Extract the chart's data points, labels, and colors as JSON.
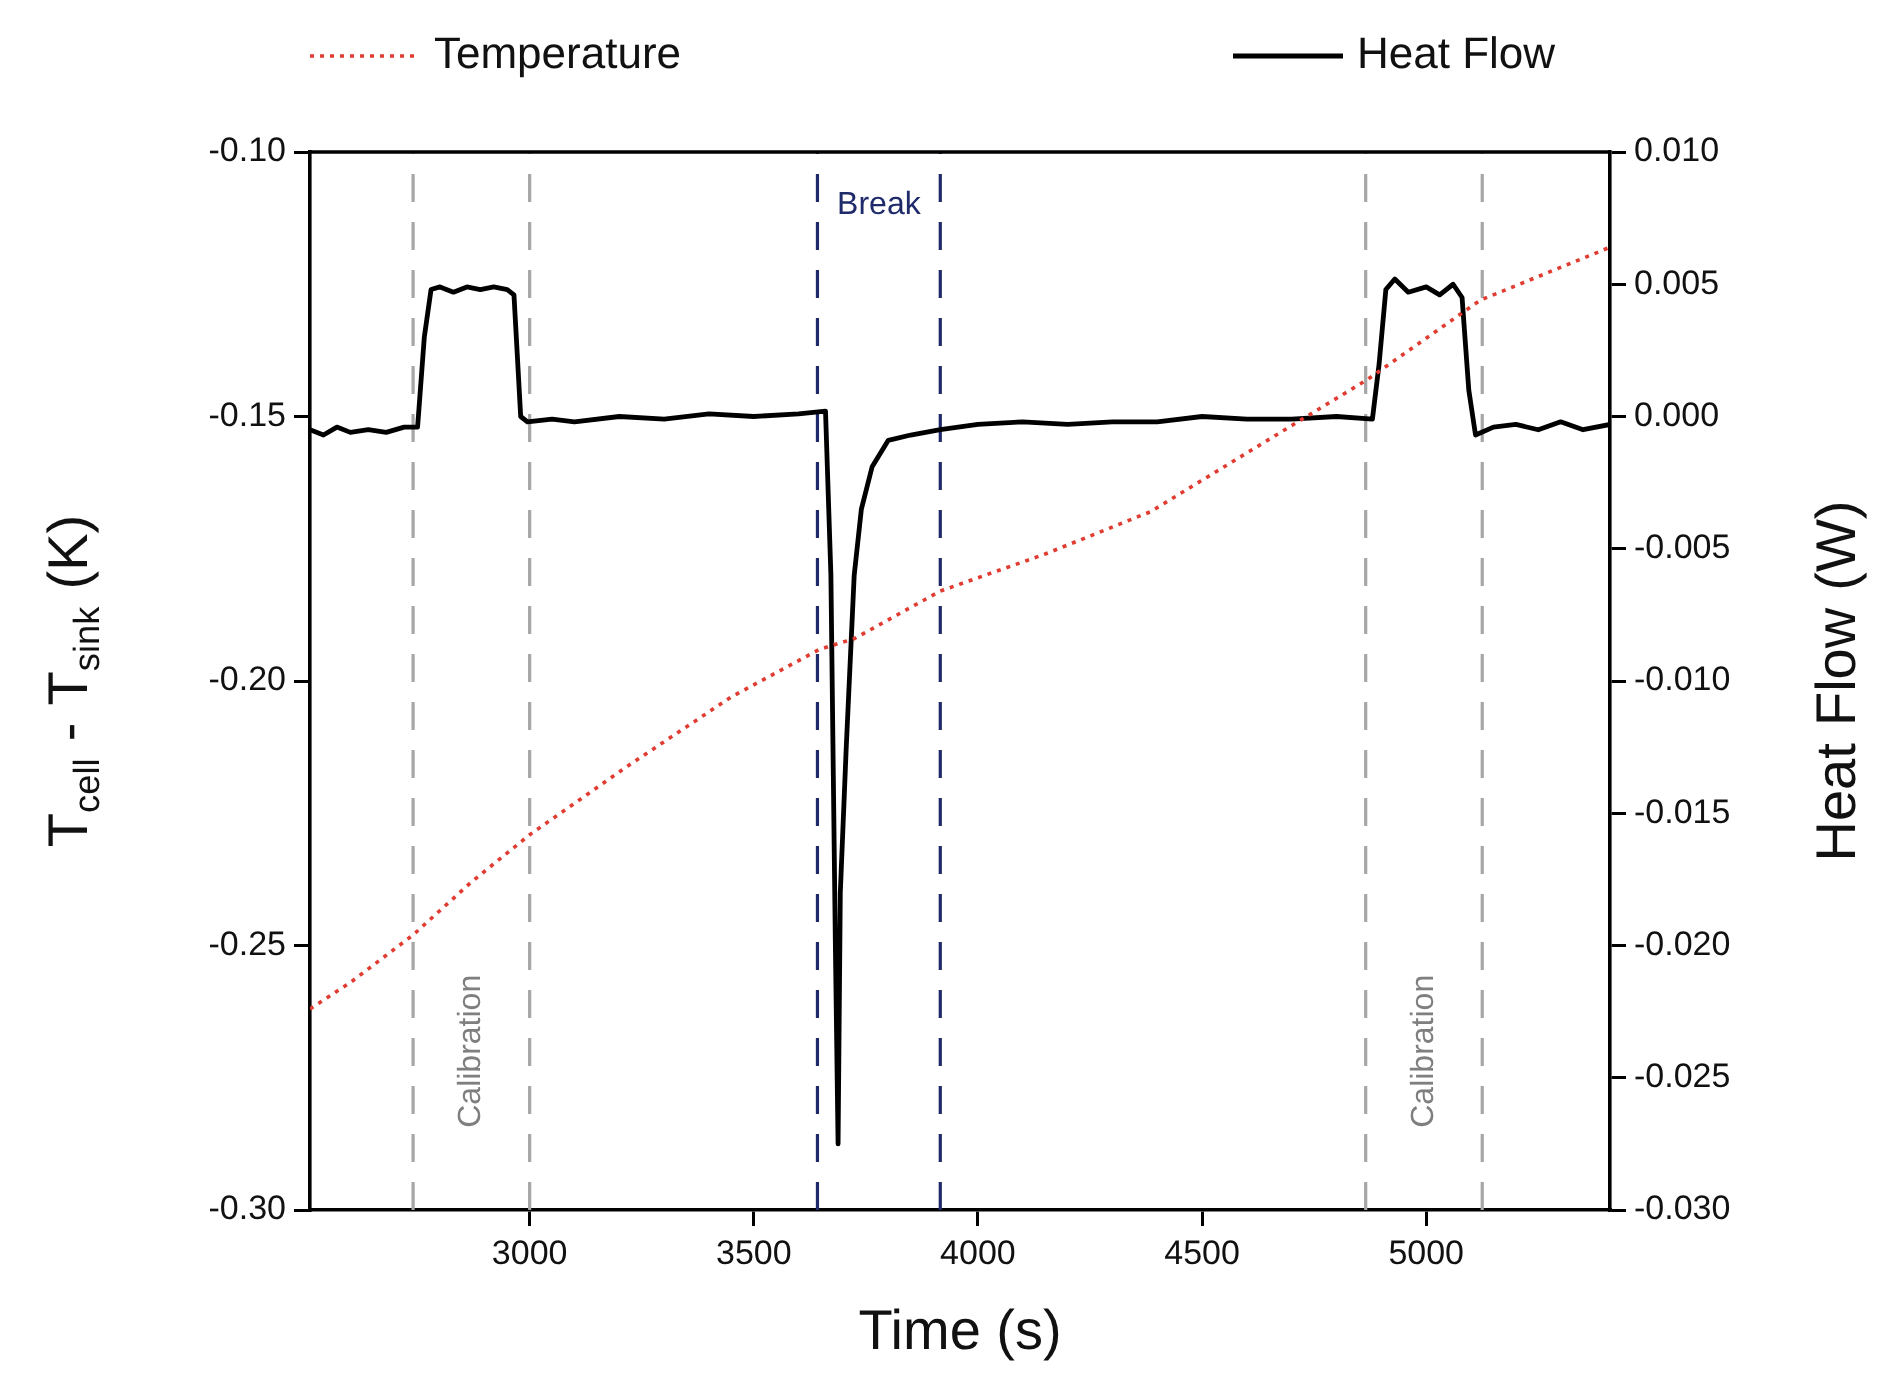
{
  "chart_data": {
    "type": "line",
    "xlabel": "Time (s)",
    "ylabel": "T$_{cell}$ - T$_{sink}$ (K)",
    "y2label": "Heat Flow (W)",
    "xlim": [
      2510,
      5410
    ],
    "xticks": [
      3000,
      3500,
      4000,
      4500,
      5000
    ],
    "ylim": [
      -0.3,
      -0.1
    ],
    "yticks": [
      {
        "value": -0.3,
        "label": "-0.30"
      },
      {
        "value": -0.25,
        "label": "-0.25"
      },
      {
        "value": -0.2,
        "label": "-0.20"
      },
      {
        "value": -0.15,
        "label": "-0.15"
      },
      {
        "value": -0.1,
        "label": "-0.10"
      }
    ],
    "y2lim": [
      -0.03,
      0.01
    ],
    "y2ticks": [
      {
        "value": -0.03,
        "label": "-0.030"
      },
      {
        "value": -0.025,
        "label": "-0.025"
      },
      {
        "value": -0.02,
        "label": "-0.020"
      },
      {
        "value": -0.015,
        "label": "-0.015"
      },
      {
        "value": -0.01,
        "label": "-0.010"
      },
      {
        "value": -0.005,
        "label": "-0.005"
      },
      {
        "value": 0,
        "label": "0.000"
      },
      {
        "value": 0.005,
        "label": "0.005"
      },
      {
        "value": 0.01,
        "label": "0.010"
      }
    ],
    "series": [
      {
        "name": "Temperature",
        "color": "#e03c31",
        "line_style": "dotted",
        "x": [
          2510,
          2600,
          2740,
          2870,
          3001,
          3220,
          3450,
          3647,
          3724,
          3916,
          4150,
          4385,
          4675,
          4869,
          5121,
          5410
        ],
        "values": [
          -0.262,
          -0.257,
          -0.248,
          -0.238,
          -0.229,
          -0.216,
          -0.203,
          -0.194,
          -0.192,
          -0.183,
          -0.176,
          -0.168,
          -0.153,
          -0.143,
          -0.128,
          -0.118
        ]
      },
      {
        "name": "Heat Flow",
        "color": "#000000",
        "axis": "y2",
        "line_style": "solid",
        "x": [
          2510,
          2540,
          2570,
          2600,
          2640,
          2680,
          2720,
          2750,
          2765,
          2780,
          2800,
          2830,
          2860,
          2890,
          2920,
          2950,
          2965,
          2980,
          2995,
          3050,
          3100,
          3200,
          3300,
          3400,
          3500,
          3600,
          3660,
          3672,
          3682,
          3688,
          3693,
          3706,
          3724,
          3740,
          3764,
          3800,
          3850,
          3916,
          4000,
          4100,
          4200,
          4300,
          4400,
          4500,
          4600,
          4700,
          4800,
          4880,
          4895,
          4910,
          4930,
          4960,
          5000,
          5030,
          5060,
          5080,
          5095,
          5110,
          5150,
          5200,
          5250,
          5300,
          5350,
          5410
        ],
        "values": [
          -0.0005,
          -0.0007,
          -0.0004,
          -0.0006,
          -0.0005,
          -0.0006,
          -0.0004,
          -0.0004,
          0.003,
          0.0048,
          0.0049,
          0.0047,
          0.0049,
          0.0048,
          0.0049,
          0.0048,
          0.0046,
          0.0,
          -0.0002,
          -0.0001,
          -0.0002,
          0.0,
          -0.0001,
          0.0001,
          0.0,
          0.0001,
          0.0002,
          -0.006,
          -0.02,
          -0.0275,
          -0.018,
          -0.0126,
          -0.006,
          -0.0035,
          -0.0019,
          -0.0009,
          -0.0007,
          -0.0005,
          -0.0003,
          -0.0002,
          -0.0003,
          -0.0002,
          -0.0002,
          0.0,
          -0.0001,
          -0.0001,
          0.0,
          -0.0001,
          0.002,
          0.0048,
          0.0052,
          0.0047,
          0.0049,
          0.0046,
          0.005,
          0.0045,
          0.001,
          -0.0007,
          -0.0004,
          -0.0003,
          -0.0005,
          -0.0002,
          -0.0005,
          -0.0003
        ]
      }
    ],
    "ref_lines": [
      {
        "axis": "x",
        "value": 2740,
        "color": "#a6a6a6",
        "line_style": "dashed"
      },
      {
        "axis": "x",
        "value": 3000,
        "color": "#a6a6a6",
        "line_style": "dashed"
      },
      {
        "axis": "x",
        "value": 3642,
        "color": "#1f2a6b",
        "line_style": "dashed"
      },
      {
        "axis": "x",
        "value": 3916,
        "color": "#1f2a6b",
        "line_style": "dashed"
      },
      {
        "axis": "x",
        "value": 4865,
        "color": "#a6a6a6",
        "line_style": "dashed"
      },
      {
        "axis": "x",
        "value": 5125,
        "color": "#a6a6a6",
        "line_style": "dashed"
      }
    ],
    "annotations": [
      "Calibration",
      "Break",
      "Calibration"
    ],
    "legend": "top",
    "marker": "none",
    "grid": false
  }
}
